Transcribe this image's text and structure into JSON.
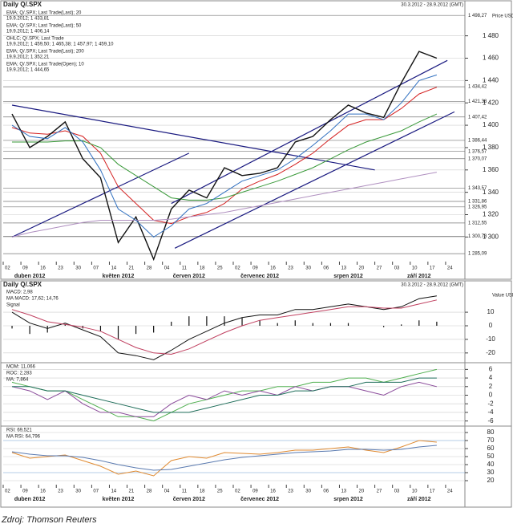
{
  "chart_data": [
    {
      "type": "line",
      "title": "Daily Q/.SPX",
      "subtitle": "30.3.2012 - 28.9.2012 (GMT)",
      "y_label": "Price USD",
      "categories": [
        "02",
        "09",
        "16",
        "23",
        "30",
        "07",
        "14",
        "21",
        "28",
        "04",
        "11",
        "18",
        "25",
        "02",
        "09",
        "16",
        "23",
        "30",
        "06",
        "13",
        "20",
        "27",
        "03",
        "10",
        "17",
        "24"
      ],
      "months": [
        null,
        "duben 2012",
        null,
        null,
        null,
        null,
        "květen 2012",
        null,
        null,
        null,
        "červen 2012",
        null,
        null,
        null,
        "červenec 2012",
        null,
        null,
        null,
        null,
        "srpen 2012",
        null,
        null,
        null,
        "září 2012",
        null,
        null
      ],
      "ylim": [
        1278,
        1502
      ],
      "yticks": [
        {
          "value": 1300,
          "label": "1 300"
        },
        {
          "value": 1320,
          "label": "1 320"
        },
        {
          "value": 1340,
          "label": "1 340"
        },
        {
          "value": 1360,
          "label": "1 360"
        },
        {
          "value": 1380,
          "label": "1 380"
        },
        {
          "value": 1400,
          "label": "1 400"
        },
        {
          "value": 1420,
          "label": "1 420"
        },
        {
          "value": 1440,
          "label": "1 440"
        },
        {
          "value": 1460,
          "label": "1 460"
        },
        {
          "value": 1480,
          "label": "1 480"
        }
      ],
      "levels": [
        {
          "value": 1498.27,
          "label": "1 498,27"
        },
        {
          "value": 1434.42,
          "label": "1 434,42"
        },
        {
          "value": 1421.38,
          "label": "1 421,38"
        },
        {
          "value": 1407.42,
          "label": "1 407,42"
        },
        {
          "value": 1386.44,
          "label": "1 386,44"
        },
        {
          "value": 1376.57,
          "label": "1 376,57"
        },
        {
          "value": 1370.07,
          "label": "1 370,07"
        },
        {
          "value": 1343.57,
          "label": "1 343,57"
        },
        {
          "value": 1331.86,
          "label": "1 331,86"
        },
        {
          "value": 1326.95,
          "label": "1 326,95"
        },
        {
          "value": 1312.55,
          "label": "1 312,55"
        },
        {
          "value": 1300.73,
          "label": "1 300,73"
        },
        {
          "value": 1285.09,
          "label": "1 285,09"
        }
      ],
      "trendlines": [
        {
          "x": [
            0,
            20.5
          ],
          "y": [
            1418,
            1360
          ]
        },
        {
          "x": [
            9,
            24.6
          ],
          "y": [
            1330,
            1458
          ]
        },
        {
          "x": [
            9.2,
            25
          ],
          "y": [
            1290,
            1412
          ]
        },
        {
          "x": [
            0,
            10
          ],
          "y": [
            1300,
            1375
          ]
        }
      ],
      "series": [
        {
          "name": "EMA; Q/.SPX; Last Trade(Last); 20",
          "legend_value": "19.9.2012; 1 433,81",
          "color": "#d42020",
          "values": [
            1398,
            1393,
            1392,
            1395,
            1390,
            1375,
            1345,
            1330,
            1315,
            1312,
            1318,
            1322,
            1330,
            1343,
            1350,
            1356,
            1365,
            1375,
            1388,
            1400,
            1405,
            1405,
            1415,
            1428,
            1434,
            null
          ]
        },
        {
          "name": "EMA; Q/.SPX; Last Trade(Last); 50",
          "legend_value": "19.9.2012; 1 406,14",
          "color": "#3a9a3a",
          "values": [
            1385,
            1385,
            1385,
            1386,
            1386,
            1380,
            1365,
            1355,
            1345,
            1335,
            1333,
            1333,
            1335,
            1340,
            1345,
            1350,
            1356,
            1362,
            1370,
            1378,
            1385,
            1390,
            1395,
            1403,
            1410,
            null
          ]
        },
        {
          "name": "OHLC; Q/.SPX; Last Trade",
          "legend_value": "19.9.2012; 1 459,50; 1 465,38; 1 457,97; 1 459,10",
          "color": "#111111",
          "values": [
            1410,
            1380,
            1390,
            1403,
            1370,
            1353,
            1295,
            1318,
            1280,
            1325,
            1342,
            1335,
            1362,
            1355,
            1357,
            1362,
            1385,
            1390,
            1405,
            1418,
            1411,
            1407,
            1438,
            1466,
            1460,
            null
          ]
        },
        {
          "name": "EMA; Q/.SPX; Last Trade(Last); 200",
          "legend_value": "19.9.2012; 1 352,21",
          "color": "#b090c0",
          "values": [
            1300,
            1304,
            1307,
            1310,
            1313,
            1315,
            1315,
            1315,
            1315,
            1316,
            1318,
            1320,
            1322,
            1325,
            1328,
            1331,
            1334,
            1337,
            1340,
            1343,
            1346,
            1349,
            1352,
            1355,
            1358,
            null
          ]
        },
        {
          "name": "EMA; Q/.SPX; Last Trade(Open); 10",
          "legend_value": "19.9.2012; 1 444,65",
          "color": "#3070c0",
          "values": [
            1400,
            1390,
            1388,
            1398,
            1385,
            1360,
            1325,
            1315,
            1300,
            1310,
            1325,
            1330,
            1340,
            1350,
            1355,
            1360,
            1370,
            1382,
            1395,
            1410,
            1410,
            1405,
            1420,
            1440,
            1445,
            null
          ]
        }
      ]
    },
    {
      "type": "line",
      "title": "Daily Q/.SPX",
      "subtitle": "30.3.2012 - 28.9.2012 (GMT)",
      "y_label": "Value USD",
      "ylim": [
        -26,
        26
      ],
      "yticks": [
        10,
        0,
        -10,
        -20
      ],
      "series": [
        {
          "name": "MACD: 2,98",
          "color": "#111111",
          "style": "bar",
          "values": [
            -2,
            -6,
            -5,
            1,
            -2,
            -4,
            -10,
            -6,
            -5,
            3,
            7,
            7,
            7,
            6,
            4,
            2,
            4,
            2,
            2,
            2,
            0,
            -1,
            1,
            4,
            3,
            null
          ]
        },
        {
          "name": "MA MACD: 17,62; 14,76",
          "color": "#111111",
          "values": [
            10,
            2,
            -2,
            2,
            -3,
            -8,
            -20,
            -22,
            -25,
            -18,
            -10,
            -4,
            2,
            6,
            8,
            8,
            12,
            12,
            14,
            16,
            14,
            12,
            14,
            20,
            22,
            null
          ]
        },
        {
          "name": "Signal",
          "color": "#c04060",
          "values": [
            12,
            8,
            3,
            1,
            -1,
            -4,
            -10,
            -16,
            -20,
            -21,
            -17,
            -11,
            -5,
            0,
            4,
            6,
            8,
            10,
            12,
            14,
            14,
            13,
            13,
            16,
            19,
            null
          ]
        }
      ]
    },
    {
      "type": "line",
      "ylim": [
        -7,
        7
      ],
      "yticks": [
        6,
        4,
        2,
        0,
        -2,
        -4,
        -6
      ],
      "series": [
        {
          "name": "MOM: 11,066",
          "color": "#50b050",
          "values": [
            3,
            2,
            1,
            1,
            -1,
            -3,
            -5,
            -5,
            -6,
            -4,
            -2,
            -1,
            0,
            1,
            1,
            2,
            2,
            3,
            3,
            4,
            4,
            3,
            4,
            5,
            6,
            null
          ]
        },
        {
          "name": "ROC: 2,283",
          "color": "#8a4a9a",
          "values": [
            2,
            1,
            -1,
            1,
            -2,
            -4,
            -4,
            -5,
            -5,
            -2,
            0,
            -1,
            1,
            0,
            1,
            0,
            2,
            1,
            2,
            2,
            1,
            0,
            2,
            3,
            2,
            null
          ]
        },
        {
          "name": "MA: 7,864",
          "color": "#1f6e5a",
          "values": [
            2,
            2,
            1,
            1,
            0,
            -1,
            -2,
            -3,
            -4,
            -4,
            -4,
            -3,
            -2,
            -1,
            0,
            0,
            1,
            1,
            2,
            2,
            3,
            3,
            3,
            4,
            4,
            null
          ]
        }
      ]
    },
    {
      "type": "line",
      "categories": [
        "02",
        "09",
        "16",
        "23",
        "30",
        "07",
        "14",
        "21",
        "28",
        "04",
        "11",
        "18",
        "25",
        "02",
        "09",
        "16",
        "23",
        "30",
        "06",
        "13",
        "20",
        "27",
        "03",
        "10",
        "17",
        "24"
      ],
      "months": [
        null,
        "duben 2012",
        null,
        null,
        null,
        null,
        "květen 2012",
        null,
        null,
        null,
        "červen 2012",
        null,
        null,
        null,
        "červenec 2012",
        null,
        null,
        null,
        null,
        "srpen 2012",
        null,
        null,
        null,
        "září 2012",
        null,
        null
      ],
      "ylim": [
        15,
        85
      ],
      "yticks": [
        80,
        70,
        60,
        50,
        40,
        30,
        20
      ],
      "series": [
        {
          "name": "RSI: 69,521",
          "color": "#e08a30",
          "values": [
            55,
            48,
            50,
            52,
            45,
            38,
            28,
            32,
            26,
            45,
            50,
            48,
            55,
            54,
            53,
            55,
            58,
            58,
            60,
            62,
            58,
            55,
            62,
            70,
            68,
            null
          ]
        },
        {
          "name": "MA RSI: 64,796",
          "color": "#5a7ab0",
          "values": [
            56,
            53,
            51,
            51,
            49,
            45,
            40,
            36,
            33,
            34,
            38,
            42,
            46,
            49,
            51,
            53,
            55,
            56,
            57,
            59,
            59,
            58,
            59,
            62,
            64,
            null
          ]
        }
      ]
    }
  ],
  "source": "Zdroj: Thomson Reuters"
}
